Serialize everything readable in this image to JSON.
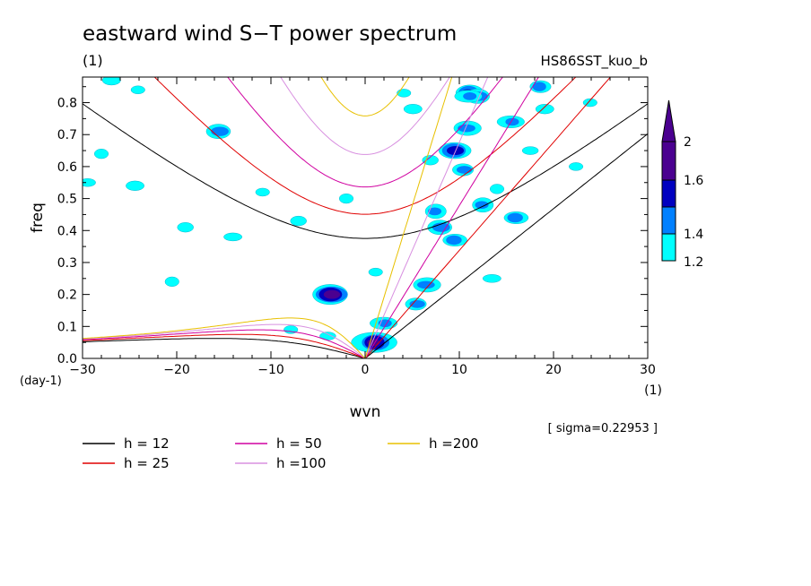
{
  "chart_data": {
    "type": "contour",
    "title": "eastward wind S−T power spectrum",
    "left_note": "(1)",
    "right_note": "HS86SST_kuo_b",
    "xlabel": "wvn",
    "x_unit": "(1)",
    "ylabel": "freq",
    "y_unit": "(day-1)",
    "sigma_note": "[ sigma=0.22953 ]",
    "xlim": [
      -30,
      30
    ],
    "ylim": [
      0,
      0.88
    ],
    "x_ticks": [
      -30,
      -20,
      -10,
      0,
      10,
      20,
      30
    ],
    "x_tick_labels": [
      "−30",
      "−20",
      "−10",
      "0",
      "10",
      "20",
      "30"
    ],
    "y_ticks": [
      0,
      0.1,
      0.2,
      0.3,
      0.4,
      0.5,
      0.6,
      0.7,
      0.8
    ],
    "y_tick_labels": [
      "0.0",
      "0.1",
      "0.2",
      "0.3",
      "0.4",
      "0.5",
      "0.6",
      "0.7",
      "0.8"
    ],
    "colorbar": {
      "levels": [
        1.2,
        1.4,
        1.6,
        2
      ],
      "labels": [
        "1.2",
        "1.4",
        "1.6",
        "2"
      ],
      "colors": [
        "#00ffff",
        "#0080ff",
        "#0000c0",
        "#4b0090"
      ]
    },
    "dispersion_curves": [
      {
        "name": "h = 12",
        "h": 12,
        "color": "#000000"
      },
      {
        "name": "h = 25",
        "h": 25,
        "color": "#e00000"
      },
      {
        "name": "h = 50",
        "h": 50,
        "color": "#d000a0"
      },
      {
        "name": "h =100",
        "h": 100,
        "color": "#d890e0"
      },
      {
        "name": "h =200",
        "h": 200,
        "color": "#e8c000"
      }
    ],
    "blobs": [
      {
        "x": -3.6,
        "y": 0.2,
        "level": 3
      },
      {
        "x": 1,
        "y": 0.05,
        "level": 3
      },
      {
        "x": 9.5,
        "y": 0.65,
        "level": 2
      },
      {
        "x": 11,
        "y": 0.83,
        "level": 2
      },
      {
        "x": 12,
        "y": 0.82,
        "level": 1
      },
      {
        "x": 12.5,
        "y": 0.48,
        "level": 1
      },
      {
        "x": 10.8,
        "y": 0.72,
        "level": 1
      },
      {
        "x": 10.5,
        "y": 0.59,
        "level": 1
      },
      {
        "x": 15.5,
        "y": 0.74,
        "level": 1
      },
      {
        "x": 16,
        "y": 0.44,
        "level": 1
      },
      {
        "x": 18.5,
        "y": 0.85,
        "level": 1
      },
      {
        "x": 8,
        "y": 0.41,
        "level": 1
      },
      {
        "x": 7.5,
        "y": 0.46,
        "level": 1
      },
      {
        "x": 6.5,
        "y": 0.23,
        "level": 1
      },
      {
        "x": 5.5,
        "y": 0.17,
        "level": 1
      },
      {
        "x": 2,
        "y": 0.11,
        "level": 1
      },
      {
        "x": -4,
        "y": 0.07,
        "level": 0
      },
      {
        "x": -8,
        "y": 0.09,
        "level": 0
      },
      {
        "x": -15.5,
        "y": 0.71,
        "level": 1
      },
      {
        "x": -20.5,
        "y": 0.24,
        "level": 0
      },
      {
        "x": -27,
        "y": 0.87,
        "level": 0
      },
      {
        "x": -24,
        "y": 0.84,
        "level": 0
      },
      {
        "x": -14,
        "y": 0.38,
        "level": 0
      },
      {
        "x": -29.5,
        "y": 0.55,
        "level": 0
      },
      {
        "x": 4,
        "y": 0.83,
        "level": 0
      },
      {
        "x": 7,
        "y": 0.62,
        "level": 0
      },
      {
        "x": 14,
        "y": 0.53,
        "level": 0
      },
      {
        "x": 19,
        "y": 0.78,
        "level": 0
      },
      {
        "x": 22.5,
        "y": 0.6,
        "level": 0
      },
      {
        "x": 13.5,
        "y": 0.25,
        "level": 0
      },
      {
        "x": 9.5,
        "y": 0.37,
        "level": 1
      },
      {
        "x": -11,
        "y": 0.52,
        "level": 0
      },
      {
        "x": -7,
        "y": 0.43,
        "level": 0
      },
      {
        "x": -28,
        "y": 0.64,
        "level": 0
      },
      {
        "x": -24.5,
        "y": 0.54,
        "level": 0
      },
      {
        "x": 24,
        "y": 0.8,
        "level": 0
      },
      {
        "x": 11,
        "y": 0.82,
        "level": 1
      },
      {
        "x": 17.5,
        "y": 0.65,
        "level": 0
      },
      {
        "x": 1,
        "y": 0.27,
        "level": 0
      },
      {
        "x": -19,
        "y": 0.41,
        "level": 0
      },
      {
        "x": -2,
        "y": 0.5,
        "level": 0
      },
      {
        "x": 5,
        "y": 0.78,
        "level": 0
      }
    ]
  }
}
